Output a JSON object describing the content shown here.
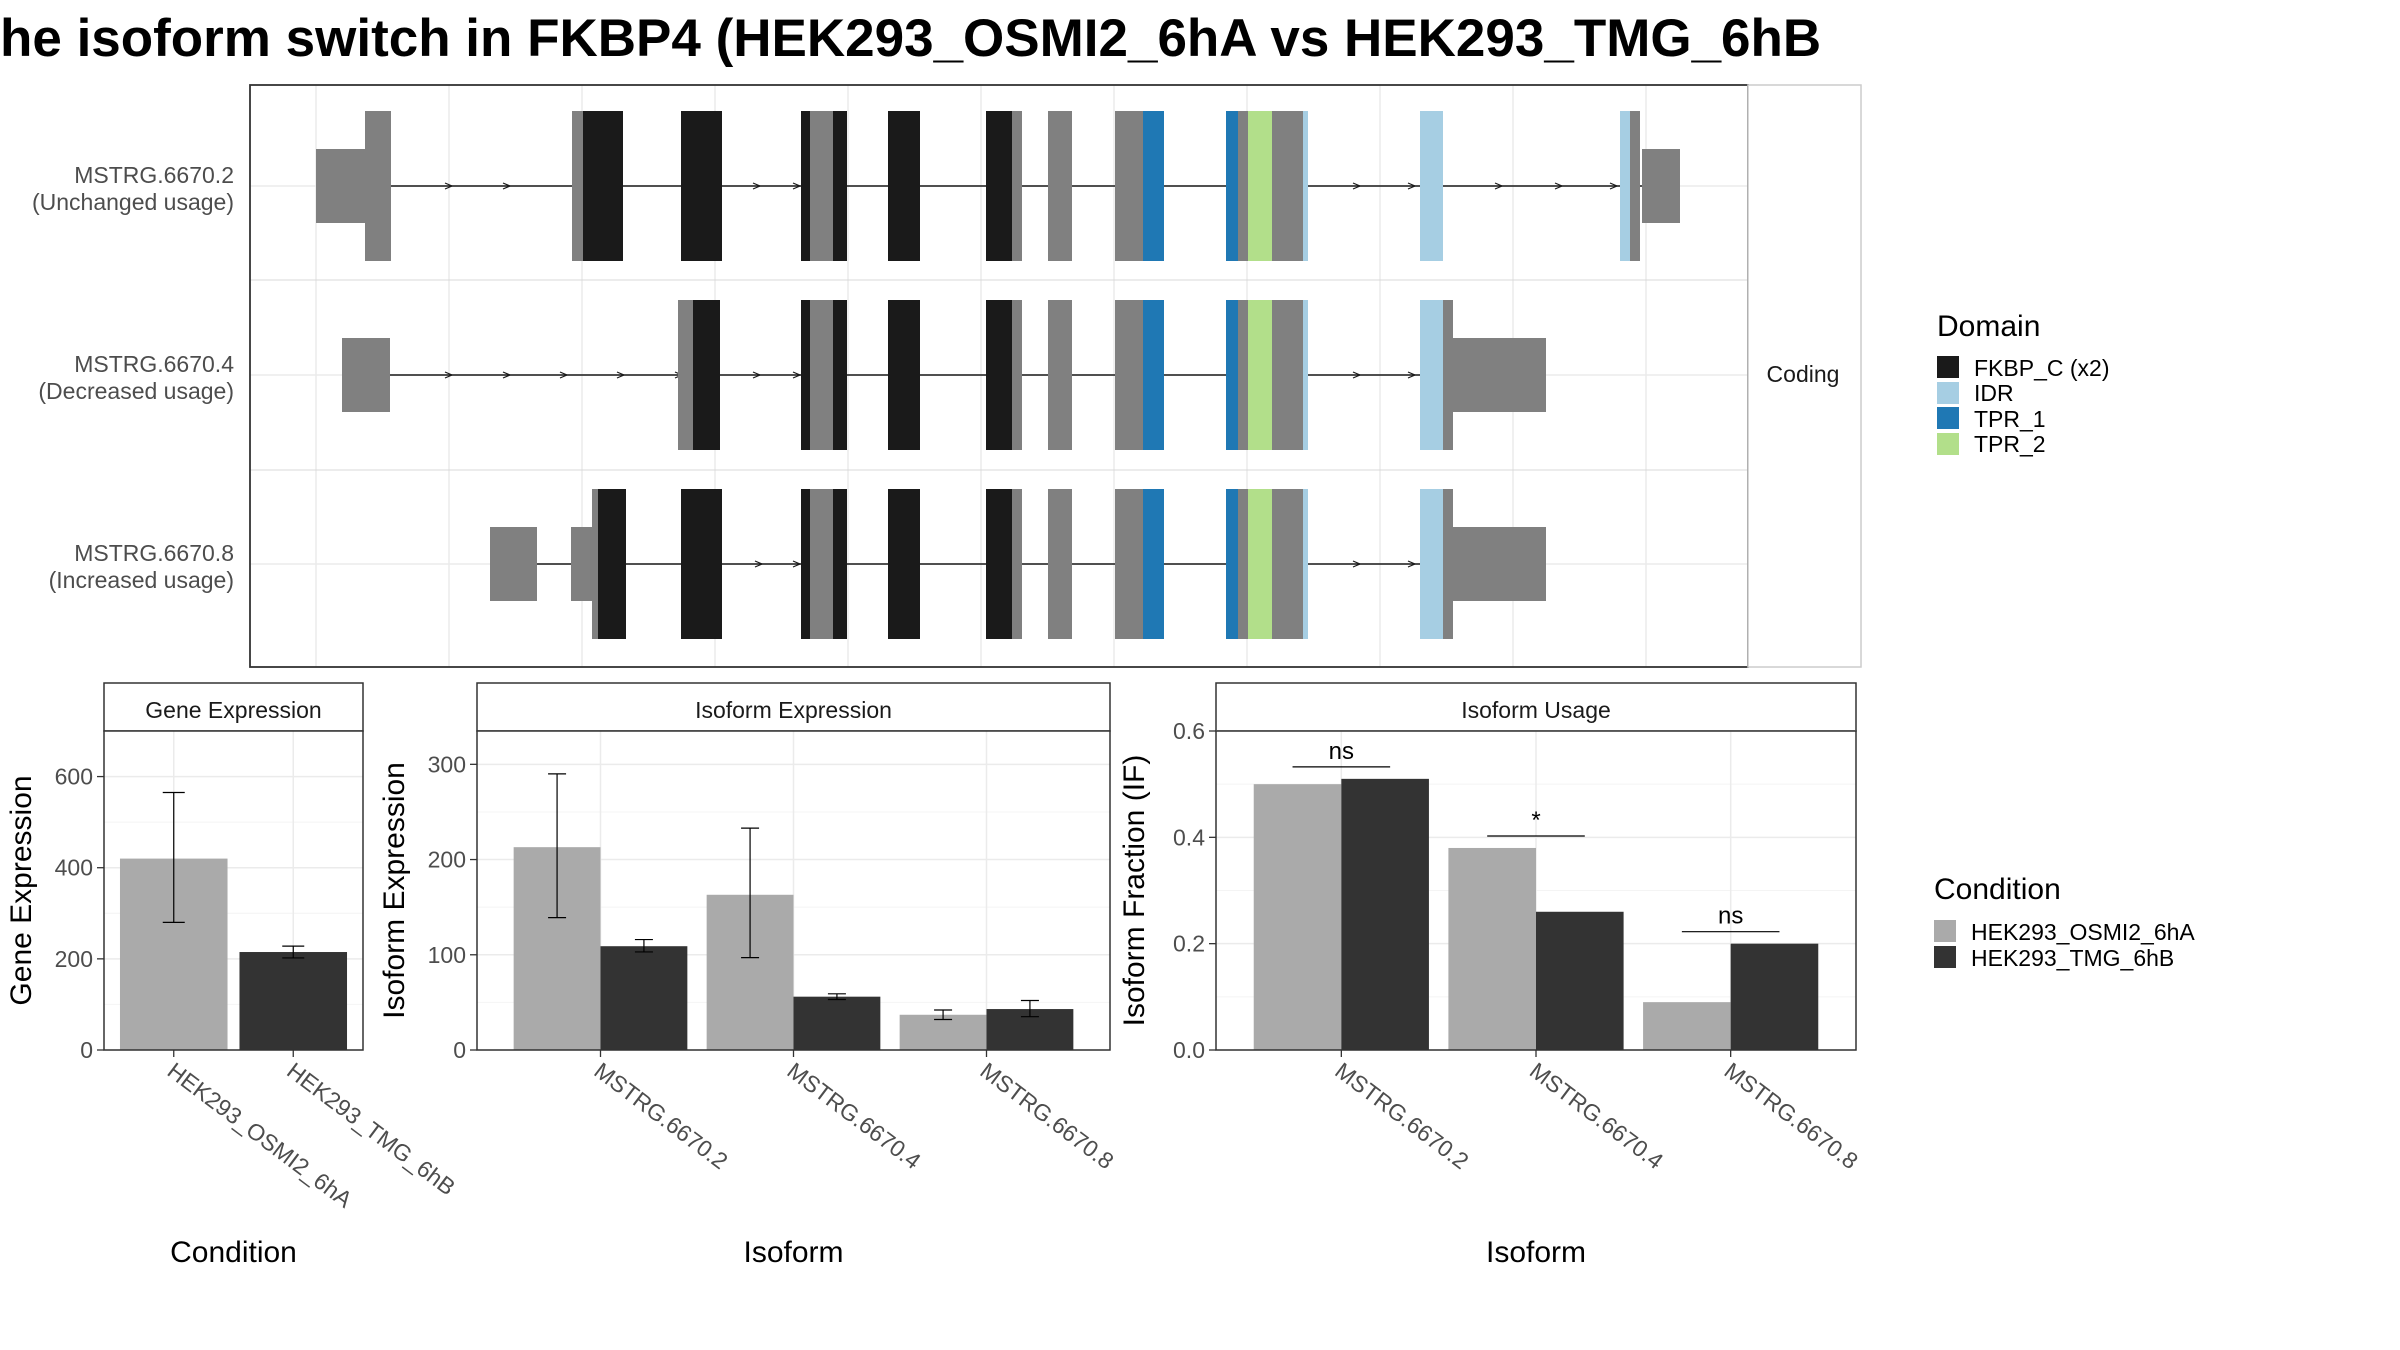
{
  "title": "he isoform switch in FKBP4 (HEK293_OSMI2_6hA vs HEK293_TMG_6hB",
  "colors": {
    "fkbp_c": "#1a1a1a",
    "idr": "#a6cee3",
    "tpr1": "#1f78b4",
    "tpr2": "#b2df8a",
    "exon": "#808080",
    "cond_a": "#aaaaaa",
    "cond_b": "#333333"
  },
  "structure": {
    "facet_label": "Coding",
    "isoforms": [
      {
        "id": "MSTRG.6670.2",
        "sublabel": "(Unchanged usage)"
      },
      {
        "id": "MSTRG.6670.4",
        "sublabel": "(Decreased usage)"
      },
      {
        "id": "MSTRG.6670.8",
        "sublabel": "(Increased usage)"
      }
    ]
  },
  "legend_domain": {
    "title": "Domain",
    "items": [
      "FKBP_C (x2)",
      "IDR",
      "TPR_1",
      "TPR_2"
    ]
  },
  "legend_condition": {
    "title": "Condition",
    "items": [
      "HEK293_OSMI2_6hA",
      "HEK293_TMG_6hB"
    ]
  },
  "chart_data": [
    {
      "type": "bar",
      "panel_title": "Gene Expression",
      "xlabel": "Condition",
      "ylabel": "Gene Expression",
      "ylim": [
        0,
        700
      ],
      "yticks": [
        0,
        200,
        400,
        600
      ],
      "categories": [
        "HEK293_OSMI2_6hA",
        "HEK293_TMG_6hB"
      ],
      "values": [
        420,
        215
      ],
      "error_low": [
        280,
        202
      ],
      "error_high": [
        565,
        228
      ]
    },
    {
      "type": "bar",
      "panel_title": "Isoform Expression",
      "xlabel": "Isoform",
      "ylabel": "Isoform Expression",
      "ylim": [
        0,
        335
      ],
      "yticks": [
        0,
        100,
        200,
        300
      ],
      "categories": [
        "MSTRG.6670.2",
        "MSTRG.6670.4",
        "MSTRG.6670.8"
      ],
      "series": [
        {
          "name": "HEK293_OSMI2_6hA",
          "values": [
            213,
            163,
            37
          ],
          "error_low": [
            139,
            97,
            32
          ],
          "error_high": [
            290,
            233,
            42
          ]
        },
        {
          "name": "HEK293_TMG_6hB",
          "values": [
            109,
            56,
            43
          ],
          "error_low": [
            103,
            53,
            35
          ],
          "error_high": [
            116,
            59,
            52
          ]
        }
      ]
    },
    {
      "type": "bar",
      "panel_title": "Isoform Usage",
      "xlabel": "Isoform",
      "ylabel": "Isoform Fraction (IF)",
      "ylim": [
        0,
        0.6
      ],
      "yticks": [
        "0.0",
        "0.2",
        "0.4",
        "0.6"
      ],
      "categories": [
        "MSTRG.6670.2",
        "MSTRG.6670.4",
        "MSTRG.6670.8"
      ],
      "series": [
        {
          "name": "HEK293_OSMI2_6hA",
          "values": [
            0.5,
            0.38,
            0.09
          ]
        },
        {
          "name": "HEK293_TMG_6hB",
          "values": [
            0.51,
            0.26,
            0.2
          ]
        }
      ],
      "significance": [
        "ns",
        "*",
        "ns"
      ]
    }
  ]
}
